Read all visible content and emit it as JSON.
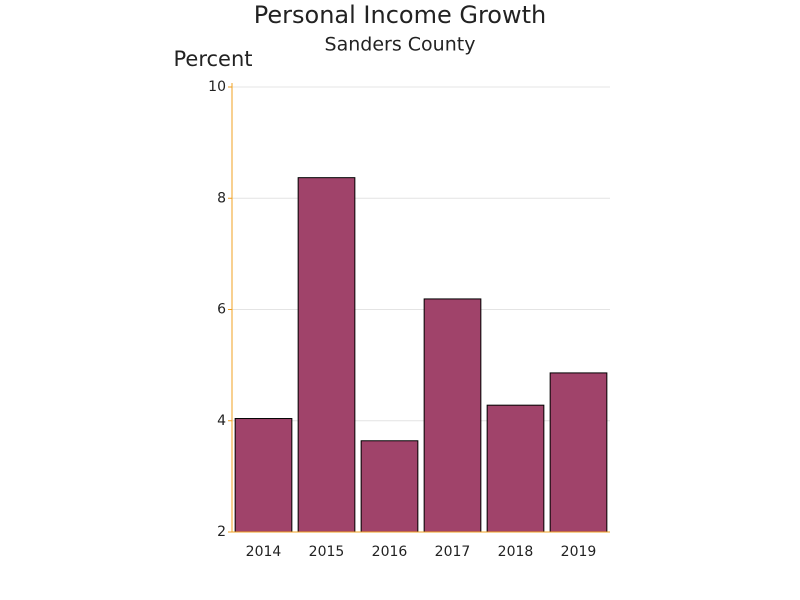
{
  "chart_data": {
    "type": "bar",
    "title": "Personal Income Growth",
    "subtitle": "Sanders County",
    "y_label": "Percent",
    "categories": [
      "2014",
      "2015",
      "2016",
      "2017",
      "2018",
      "2019"
    ],
    "values": [
      4.04,
      8.37,
      3.64,
      6.19,
      4.28,
      4.86
    ],
    "color": "#a0436a",
    "ylim": [
      2,
      10
    ],
    "yticks": [
      2,
      4,
      6,
      8,
      10
    ],
    "grid": true
  }
}
